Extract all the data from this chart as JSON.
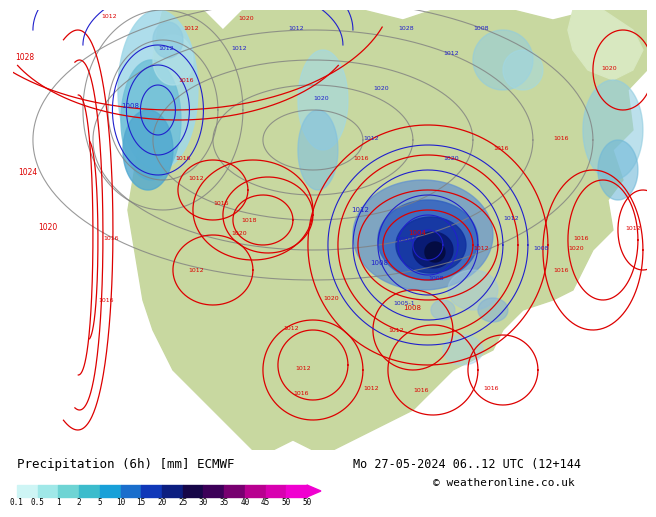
{
  "title_left": "Precipitation (6h) [mm] ECMWF",
  "title_right": "Mo 27-05-2024 06..12 UTC (12+144",
  "copyright": "© weatheronline.co.uk",
  "colorbar_levels": [
    "0.1",
    "0.5",
    "1",
    "2",
    "5",
    "10",
    "15",
    "20",
    "25",
    "30",
    "35",
    "40",
    "45",
    "50"
  ],
  "colorbar_colors": [
    "#cef5f5",
    "#a0e8e8",
    "#6ed4d4",
    "#3cbccc",
    "#18a0d8",
    "#1a6ecc",
    "#1038b8",
    "#0c1e80",
    "#160648",
    "#3c0058",
    "#780070",
    "#b80090",
    "#d800b0",
    "#f000d0"
  ],
  "ocean_color": "#d0e8f8",
  "land_color": "#c8d8a0",
  "bg_color": "#ffffff",
  "label_font_size": 9,
  "copyright_font_size": 8
}
